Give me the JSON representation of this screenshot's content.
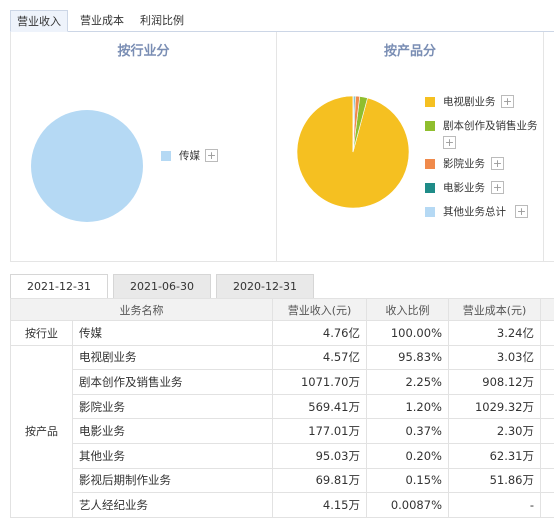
{
  "top_tabs": [
    "营业收入",
    "营业成本",
    "利润比例"
  ],
  "panels": {
    "industry": {
      "title": "按行业分",
      "legend": [
        {
          "label": "传媒",
          "color": "#b5d9f4"
        }
      ]
    },
    "product": {
      "title": "按产品分",
      "legend": [
        {
          "label": "电视剧业务",
          "color": "#f5c021"
        },
        {
          "label": "剧本创作及销售业务",
          "color": "#8fbe2e"
        },
        {
          "label": "影院业务",
          "color": "#f08a4b"
        },
        {
          "label": "电影业务",
          "color": "#1f8c88"
        },
        {
          "label": "其他业务总计",
          "color": "#b5d9f4"
        }
      ]
    }
  },
  "chart_data": [
    {
      "type": "pie",
      "labels": [
        "传媒"
      ],
      "values": [
        100.0
      ]
    },
    {
      "type": "pie",
      "labels": [
        "电视剧业务",
        "剧本创作及销售业务",
        "影院业务",
        "电影业务",
        "其他业务总计"
      ],
      "values": [
        95.83,
        2.25,
        1.2,
        0.37,
        0.35
      ]
    }
  ],
  "date_tabs": [
    "2021-12-31",
    "2021-06-30",
    "2020-12-31"
  ],
  "table": {
    "headers": [
      "业务名称",
      "营业收入(元)",
      "收入比例",
      "营业成本(元)"
    ],
    "groups": {
      "industry": "按行业",
      "product": "按产品"
    },
    "industry_rows": [
      {
        "name": "传媒",
        "revenue": "4.76亿",
        "ratio": "100.00%",
        "cost": "3.24亿"
      }
    ],
    "product_rows": [
      {
        "name": "电视剧业务",
        "revenue": "4.57亿",
        "ratio": "95.83%",
        "cost": "3.03亿"
      },
      {
        "name": "剧本创作及销售业务",
        "revenue": "1071.70万",
        "ratio": "2.25%",
        "cost": "908.12万"
      },
      {
        "name": "影院业务",
        "revenue": "569.41万",
        "ratio": "1.20%",
        "cost": "1029.32万"
      },
      {
        "name": "电影业务",
        "revenue": "177.01万",
        "ratio": "0.37%",
        "cost": "2.30万"
      },
      {
        "name": "其他业务",
        "revenue": "95.03万",
        "ratio": "0.20%",
        "cost": "62.31万"
      },
      {
        "name": "影视后期制作业务",
        "revenue": "69.81万",
        "ratio": "0.15%",
        "cost": "51.86万"
      },
      {
        "name": "艺人经纪业务",
        "revenue": "4.15万",
        "ratio": "0.0087%",
        "cost": "-"
      }
    ]
  }
}
